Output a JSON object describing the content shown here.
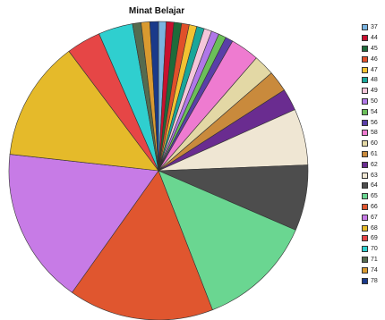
{
  "chart_data": {
    "type": "pie",
    "title": "Minat Belajar",
    "legend_position": "right",
    "slices": [
      {
        "label": "37",
        "value": 0.8,
        "color": "#7ab3e0"
      },
      {
        "label": "44",
        "value": 0.8,
        "color": "#c8102e"
      },
      {
        "label": "45",
        "value": 0.8,
        "color": "#1e6b3a"
      },
      {
        "label": "46",
        "value": 0.8,
        "color": "#e0502a"
      },
      {
        "label": "47",
        "value": 0.8,
        "color": "#f2c232"
      },
      {
        "label": "48",
        "value": 0.8,
        "color": "#1aa69a"
      },
      {
        "label": "49",
        "value": 0.8,
        "color": "#f4c6da"
      },
      {
        "label": "50",
        "value": 0.8,
        "color": "#b077e8"
      },
      {
        "label": "54",
        "value": 0.8,
        "color": "#6bbf59"
      },
      {
        "label": "56",
        "value": 0.8,
        "color": "#5a3fa8"
      },
      {
        "label": "58",
        "value": 3.0,
        "color": "#ee7bd0"
      },
      {
        "label": "60",
        "value": 2.2,
        "color": "#e3d8a5"
      },
      {
        "label": "61",
        "value": 2.2,
        "color": "#c98a3c"
      },
      {
        "label": "62",
        "value": 2.3,
        "color": "#6a2c90"
      },
      {
        "label": "63",
        "value": 5.9,
        "color": "#efe6d3"
      },
      {
        "label": "64",
        "value": 6.9,
        "color": "#4d4d4d"
      },
      {
        "label": "65",
        "value": 12.2,
        "color": "#6ad691"
      },
      {
        "label": "66",
        "value": 15.2,
        "color": "#e0562f"
      },
      {
        "label": "67",
        "value": 16.4,
        "color": "#c77be6"
      },
      {
        "label": "68",
        "value": 12.6,
        "color": "#e5ba2a"
      },
      {
        "label": "69",
        "value": 3.6,
        "color": "#e64646"
      },
      {
        "label": "70",
        "value": 3.6,
        "color": "#2fcfcf"
      },
      {
        "label": "71",
        "value": 0.9,
        "color": "#556b4f"
      },
      {
        "label": "74",
        "value": 0.9,
        "color": "#d99a30"
      },
      {
        "label": "78",
        "value": 0.9,
        "color": "#1a3a8a"
      }
    ]
  }
}
